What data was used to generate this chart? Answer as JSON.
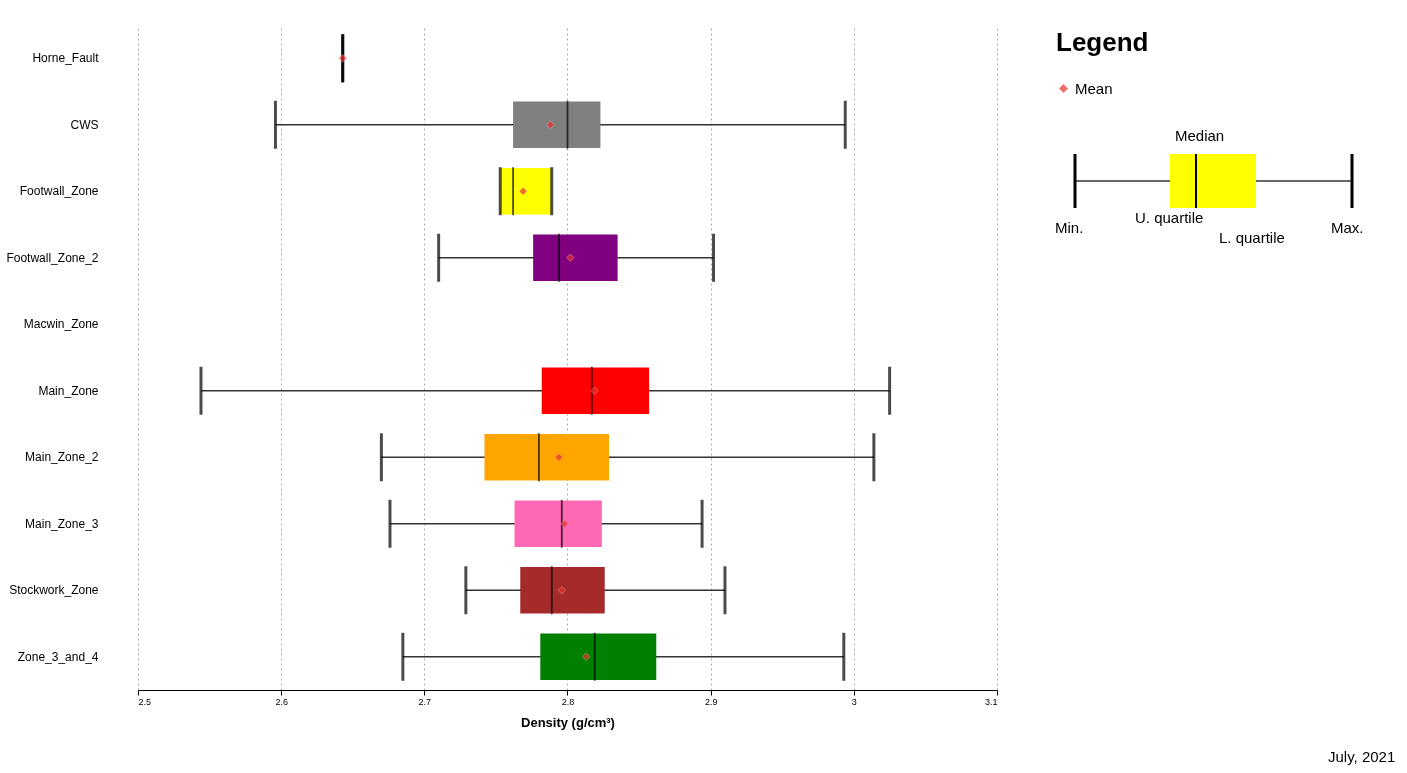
{
  "chart_data": {
    "type": "box",
    "orientation": "horizontal",
    "xlabel": "Density (g/cm³)",
    "categories": [
      "Horne_Fault",
      "CWS",
      "Footwall_Zone",
      "Footwall_Zone_2",
      "Macwin_Zone",
      "Main_Zone",
      "Main_Zone_2",
      "Main_Zone_3",
      "Stockwork_Zone",
      "Zone_3_and_4"
    ],
    "boxes": [
      {
        "low": 2.643,
        "q1": 2.643,
        "median": 2.643,
        "q3": 2.643,
        "high": 2.643
      },
      {
        "low": 2.596,
        "q1": 2.762,
        "median": 2.8,
        "q3": 2.823,
        "high": 2.994
      },
      {
        "low": 2.753,
        "q1": 2.753,
        "median": 2.762,
        "q3": 2.789,
        "high": 2.789
      },
      {
        "low": 2.71,
        "q1": 2.776,
        "median": 2.794,
        "q3": 2.835,
        "high": 2.902
      },
      null,
      {
        "low": 2.544,
        "q1": 2.782,
        "median": 2.817,
        "q3": 2.857,
        "high": 3.025
      },
      {
        "low": 2.67,
        "q1": 2.742,
        "median": 2.78,
        "q3": 2.829,
        "high": 3.014
      },
      {
        "low": 2.676,
        "q1": 2.763,
        "median": 2.796,
        "q3": 2.824,
        "high": 2.894
      },
      {
        "low": 2.729,
        "q1": 2.767,
        "median": 2.789,
        "q3": 2.826,
        "high": 2.91
      },
      {
        "low": 2.685,
        "q1": 2.781,
        "median": 2.819,
        "q3": 2.862,
        "high": 2.993
      }
    ],
    "colors": [
      null,
      "#808080",
      "#ffff00",
      "#800080",
      null,
      "#ff0000",
      "#ffa500",
      "#ff69b4",
      "#a52a2a",
      "#008000"
    ],
    "series": [
      {
        "name": "Mean",
        "type": "scatter",
        "marker": "diamond",
        "color": "#e8312f",
        "values": [
          2.643,
          2.788,
          2.769,
          2.802,
          null,
          2.819,
          2.794,
          2.798,
          2.796,
          2.813
        ]
      }
    ],
    "xlim": [
      2.5,
      3.1
    ],
    "xticks": [
      2.5,
      2.6,
      2.7,
      2.8,
      2.9,
      3,
      3.1
    ],
    "grid": "x",
    "legend": "top right",
    "legend_title": "Legend",
    "annotations": [
      "Median",
      "U. quartile",
      "L. quartile",
      "Min.",
      "Max.",
      "July, 2021"
    ]
  }
}
